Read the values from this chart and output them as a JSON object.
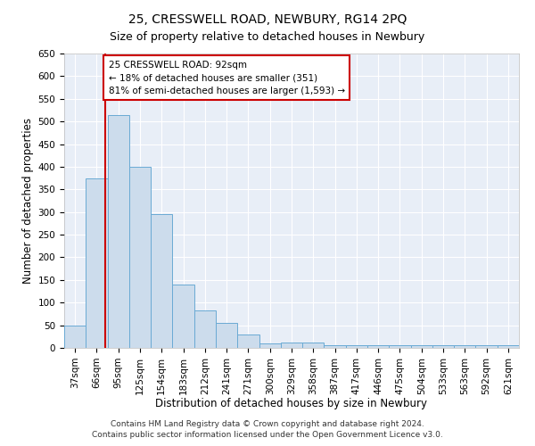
{
  "title": "25, CRESSWELL ROAD, NEWBURY, RG14 2PQ",
  "subtitle": "Size of property relative to detached houses in Newbury",
  "xlabel": "Distribution of detached houses by size in Newbury",
  "ylabel": "Number of detached properties",
  "categories": [
    "37sqm",
    "66sqm",
    "95sqm",
    "125sqm",
    "154sqm",
    "183sqm",
    "212sqm",
    "241sqm",
    "271sqm",
    "300sqm",
    "329sqm",
    "358sqm",
    "387sqm",
    "417sqm",
    "446sqm",
    "475sqm",
    "504sqm",
    "533sqm",
    "563sqm",
    "592sqm",
    "621sqm"
  ],
  "values": [
    50,
    375,
    515,
    400,
    295,
    140,
    83,
    55,
    30,
    10,
    12,
    12,
    5,
    5,
    5,
    5,
    5,
    5,
    5,
    5,
    5
  ],
  "bar_color": "#ccdcec",
  "bar_edge_color": "#6aaad4",
  "vline_color": "#cc0000",
  "annotation_line1": "25 CRESSWELL ROAD: 92sqm",
  "annotation_line2": "← 18% of detached houses are smaller (351)",
  "annotation_line3": "81% of semi-detached houses are larger (1,593) →",
  "annotation_box_facecolor": "#ffffff",
  "annotation_box_edgecolor": "#cc0000",
  "ylim": [
    0,
    650
  ],
  "yticks": [
    0,
    50,
    100,
    150,
    200,
    250,
    300,
    350,
    400,
    450,
    500,
    550,
    600,
    650
  ],
  "footer1": "Contains HM Land Registry data © Crown copyright and database right 2024.",
  "footer2": "Contains public sector information licensed under the Open Government Licence v3.0.",
  "bg_color": "#ffffff",
  "plot_bg_color": "#e8eef7",
  "title_fontsize": 10,
  "subtitle_fontsize": 9,
  "xlabel_fontsize": 8.5,
  "ylabel_fontsize": 8.5,
  "tick_fontsize": 7.5,
  "annotation_fontsize": 7.5,
  "footer_fontsize": 6.5
}
